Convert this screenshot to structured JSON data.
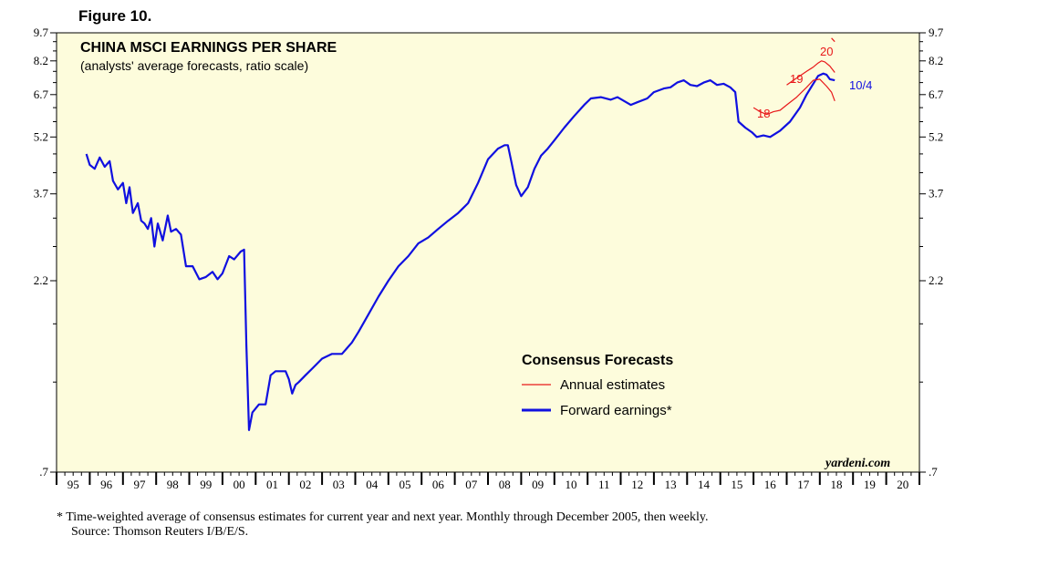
{
  "figure_label": "Figure 10.",
  "chart_data": {
    "type": "line",
    "title": "CHINA MSCI EARNINGS PER SHARE",
    "subtitle": "(analysts' average forecasts, ratio scale)",
    "yscale": "log",
    "ylim": [
      0.7,
      9.7
    ],
    "yticks": [
      0.7,
      2.2,
      3.7,
      5.2,
      6.7,
      8.2,
      9.7
    ],
    "ytick_labels": [
      ".7",
      "2.2",
      "3.7",
      "5.2",
      "6.7",
      "8.2",
      "9.7"
    ],
    "xlim": [
      1995,
      2021
    ],
    "xtick_labels": [
      "95",
      "96",
      "97",
      "98",
      "99",
      "00",
      "01",
      "02",
      "03",
      "04",
      "05",
      "06",
      "07",
      "08",
      "09",
      "10",
      "11",
      "12",
      "13",
      "14",
      "15",
      "16",
      "17",
      "18",
      "19",
      "20"
    ],
    "legend": {
      "title": "Consensus Forecasts",
      "position": "center-right",
      "entries": [
        {
          "label": "Annual estimates",
          "color": "#e8181a"
        },
        {
          "label": "Forward earnings*",
          "color": "#1010e0"
        }
      ]
    },
    "annotations": {
      "source_mark": "yardeni.com",
      "last_date": "10/4",
      "year_labels": [
        "18",
        "19",
        "20"
      ]
    },
    "series": [
      {
        "name": "Forward earnings*",
        "color": "#1010e0",
        "points": [
          [
            1995.9,
            4.7
          ],
          [
            1996.0,
            4.4
          ],
          [
            1996.15,
            4.3
          ],
          [
            1996.3,
            4.6
          ],
          [
            1996.45,
            4.35
          ],
          [
            1996.6,
            4.5
          ],
          [
            1996.7,
            4.0
          ],
          [
            1996.85,
            3.8
          ],
          [
            1997.0,
            3.95
          ],
          [
            1997.1,
            3.5
          ],
          [
            1997.2,
            3.85
          ],
          [
            1997.3,
            3.3
          ],
          [
            1997.45,
            3.5
          ],
          [
            1997.55,
            3.15
          ],
          [
            1997.65,
            3.1
          ],
          [
            1997.75,
            3.0
          ],
          [
            1997.85,
            3.2
          ],
          [
            1997.95,
            2.7
          ],
          [
            1998.05,
            3.1
          ],
          [
            1998.2,
            2.8
          ],
          [
            1998.35,
            3.25
          ],
          [
            1998.45,
            2.95
          ],
          [
            1998.6,
            3.0
          ],
          [
            1998.75,
            2.9
          ],
          [
            1998.9,
            2.4
          ],
          [
            1999.1,
            2.4
          ],
          [
            1999.3,
            2.22
          ],
          [
            1999.5,
            2.25
          ],
          [
            1999.7,
            2.32
          ],
          [
            1999.85,
            2.22
          ],
          [
            2000.0,
            2.3
          ],
          [
            2000.2,
            2.55
          ],
          [
            2000.35,
            2.5
          ],
          [
            2000.55,
            2.62
          ],
          [
            2000.65,
            2.65
          ],
          [
            2000.72,
            1.5
          ],
          [
            2000.8,
            0.9
          ],
          [
            2000.9,
            1.0
          ],
          [
            2001.1,
            1.05
          ],
          [
            2001.3,
            1.05
          ],
          [
            2001.45,
            1.25
          ],
          [
            2001.6,
            1.28
          ],
          [
            2001.9,
            1.28
          ],
          [
            2002.0,
            1.22
          ],
          [
            2002.1,
            1.12
          ],
          [
            2002.2,
            1.18
          ],
          [
            2002.3,
            1.2
          ],
          [
            2002.5,
            1.25
          ],
          [
            2002.7,
            1.3
          ],
          [
            2003.0,
            1.38
          ],
          [
            2003.3,
            1.42
          ],
          [
            2003.6,
            1.42
          ],
          [
            2003.9,
            1.52
          ],
          [
            2004.1,
            1.62
          ],
          [
            2004.4,
            1.8
          ],
          [
            2004.7,
            2.0
          ],
          [
            2005.0,
            2.2
          ],
          [
            2005.3,
            2.4
          ],
          [
            2005.6,
            2.55
          ],
          [
            2005.9,
            2.75
          ],
          [
            2006.2,
            2.85
          ],
          [
            2006.5,
            3.0
          ],
          [
            2006.8,
            3.15
          ],
          [
            2007.1,
            3.3
          ],
          [
            2007.4,
            3.5
          ],
          [
            2007.7,
            3.95
          ],
          [
            2008.0,
            4.55
          ],
          [
            2008.3,
            4.85
          ],
          [
            2008.5,
            4.95
          ],
          [
            2008.6,
            4.95
          ],
          [
            2008.7,
            4.5
          ],
          [
            2008.85,
            3.9
          ],
          [
            2009.0,
            3.65
          ],
          [
            2009.2,
            3.85
          ],
          [
            2009.4,
            4.3
          ],
          [
            2009.6,
            4.65
          ],
          [
            2009.8,
            4.85
          ],
          [
            2010.0,
            5.1
          ],
          [
            2010.3,
            5.5
          ],
          [
            2010.6,
            5.9
          ],
          [
            2010.9,
            6.3
          ],
          [
            2011.1,
            6.55
          ],
          [
            2011.4,
            6.6
          ],
          [
            2011.7,
            6.5
          ],
          [
            2011.9,
            6.6
          ],
          [
            2012.1,
            6.45
          ],
          [
            2012.3,
            6.3
          ],
          [
            2012.5,
            6.4
          ],
          [
            2012.8,
            6.55
          ],
          [
            2013.0,
            6.8
          ],
          [
            2013.3,
            6.95
          ],
          [
            2013.5,
            7.0
          ],
          [
            2013.7,
            7.2
          ],
          [
            2013.9,
            7.3
          ],
          [
            2014.1,
            7.1
          ],
          [
            2014.3,
            7.05
          ],
          [
            2014.5,
            7.2
          ],
          [
            2014.7,
            7.3
          ],
          [
            2014.9,
            7.1
          ],
          [
            2015.1,
            7.15
          ],
          [
            2015.3,
            7.0
          ],
          [
            2015.45,
            6.8
          ],
          [
            2015.55,
            5.7
          ],
          [
            2015.75,
            5.5
          ],
          [
            2015.95,
            5.35
          ],
          [
            2016.1,
            5.2
          ],
          [
            2016.3,
            5.25
          ],
          [
            2016.5,
            5.2
          ],
          [
            2016.8,
            5.4
          ],
          [
            2017.1,
            5.7
          ],
          [
            2017.4,
            6.2
          ],
          [
            2017.6,
            6.7
          ],
          [
            2017.8,
            7.15
          ],
          [
            2017.95,
            7.5
          ],
          [
            2018.1,
            7.6
          ],
          [
            2018.2,
            7.55
          ],
          [
            2018.3,
            7.35
          ],
          [
            2018.45,
            7.3
          ]
        ]
      },
      {
        "name": "18",
        "color": "#e8181a",
        "points": [
          [
            2016.0,
            6.2
          ],
          [
            2016.2,
            6.05
          ],
          [
            2016.4,
            5.95
          ],
          [
            2016.6,
            6.05
          ],
          [
            2016.8,
            6.1
          ],
          [
            2017.0,
            6.3
          ],
          [
            2017.3,
            6.6
          ],
          [
            2017.6,
            7.0
          ],
          [
            2017.8,
            7.3
          ],
          [
            2018.0,
            7.35
          ],
          [
            2018.2,
            7.05
          ],
          [
            2018.35,
            6.8
          ],
          [
            2018.45,
            6.45
          ]
        ]
      },
      {
        "name": "19",
        "color": "#e8181a",
        "points": [
          [
            2017.0,
            7.1
          ],
          [
            2017.2,
            7.3
          ],
          [
            2017.4,
            7.5
          ],
          [
            2017.6,
            7.7
          ],
          [
            2017.8,
            7.9
          ],
          [
            2017.95,
            8.1
          ],
          [
            2018.05,
            8.2
          ],
          [
            2018.15,
            8.15
          ],
          [
            2018.3,
            7.95
          ],
          [
            2018.45,
            7.65
          ]
        ]
      },
      {
        "name": "20",
        "color": "#e8181a",
        "points": [
          [
            2018.35,
            9.4
          ],
          [
            2018.45,
            9.2
          ]
        ]
      }
    ]
  },
  "footnote": "*   Time-weighted average of consensus estimates for current year and next year. Monthly through December 2005, then weekly.",
  "source": "Source: Thomson Reuters I/B/E/S."
}
